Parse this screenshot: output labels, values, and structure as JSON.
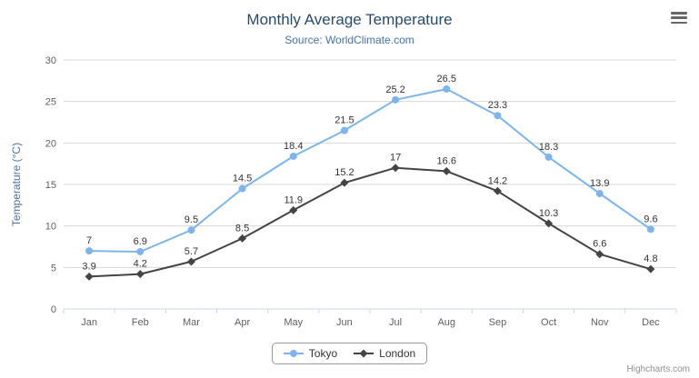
{
  "header": {
    "title": "Monthly Average Temperature",
    "subtitle": "Source: WorldClimate.com"
  },
  "chart_data": {
    "type": "line",
    "title": "Monthly Average Temperature",
    "subtitle": "Source: WorldClimate.com",
    "categories": [
      "Jan",
      "Feb",
      "Mar",
      "Apr",
      "May",
      "Jun",
      "Jul",
      "Aug",
      "Sep",
      "Oct",
      "Nov",
      "Dec"
    ],
    "series": [
      {
        "name": "Tokyo",
        "color": "#7cb5ec",
        "marker": "circle",
        "values": [
          7,
          6.9,
          9.5,
          14.5,
          18.4,
          21.5,
          25.2,
          26.5,
          23.3,
          18.3,
          13.9,
          9.6
        ]
      },
      {
        "name": "London",
        "color": "#434348",
        "marker": "diamond",
        "values": [
          3.9,
          4.2,
          5.7,
          8.5,
          11.9,
          15.2,
          17,
          16.6,
          14.2,
          10.3,
          6.6,
          4.8
        ]
      }
    ],
    "xlabel": "",
    "ylabel": "Temperature (°C)",
    "ylim": [
      0,
      30
    ],
    "ytick_step": 5,
    "grid": true,
    "legend_position": "bottom",
    "data_labels": true
  },
  "credits": "Highcharts.com"
}
